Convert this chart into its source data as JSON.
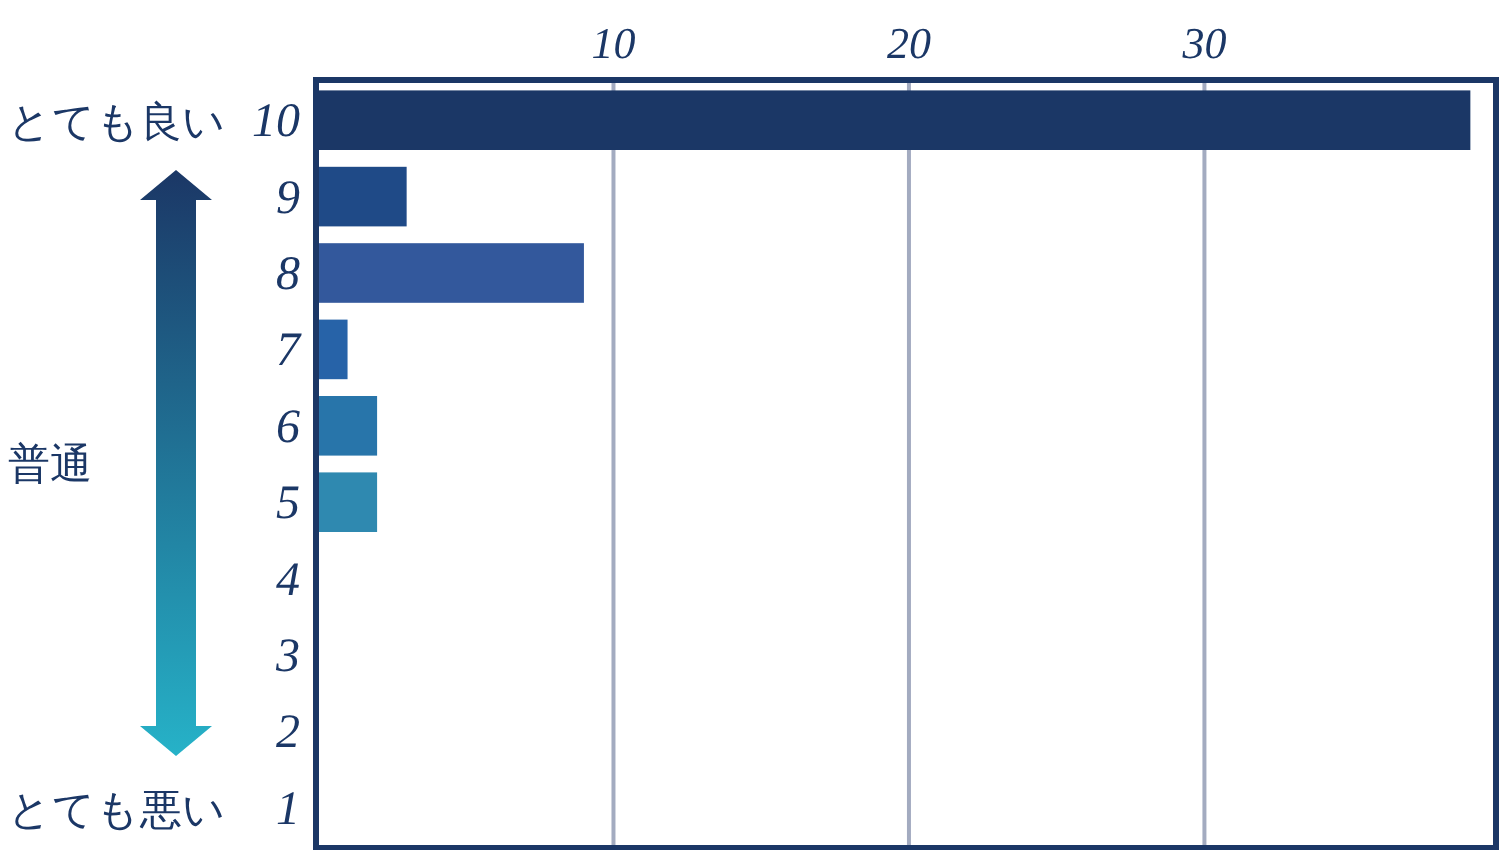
{
  "chart_data": {
    "type": "bar",
    "orientation": "horizontal",
    "categories": [
      "10",
      "9",
      "8",
      "7",
      "6",
      "5",
      "4",
      "3",
      "2",
      "1"
    ],
    "values": [
      39,
      3,
      9,
      1,
      2,
      2,
      0,
      0,
      0,
      0
    ],
    "colors": [
      "#1b3766",
      "#1f4a87",
      "#33589c",
      "#2763a8",
      "#2875aa",
      "#2f89b0",
      "#2f95b5",
      "#2ba0bd",
      "#28abc3",
      "#26b2c8"
    ],
    "xlim": [
      0,
      39.8
    ],
    "xticks": [
      10,
      20,
      30
    ],
    "grid": "x",
    "annotations": [
      "とても良い",
      "普通",
      "とても悪い"
    ]
  }
}
